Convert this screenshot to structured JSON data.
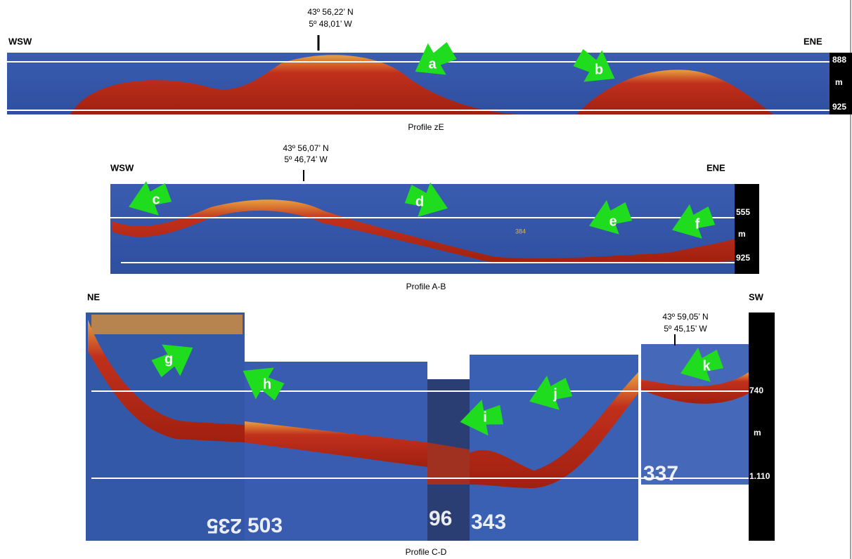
{
  "panels": [
    {
      "left": "WSW",
      "right": "ENE",
      "coord": [
        "43º 56,22’ N",
        "5º 48,01’ W"
      ],
      "depth_top": "888",
      "depth_unit": "m",
      "depth_bottom": "925",
      "markers": [
        "a",
        "b"
      ],
      "caption": "Profile zE"
    },
    {
      "left": "WSW",
      "right": "ENE",
      "coord": [
        "43º 56,07’ N",
        "5º 46,74’ W"
      ],
      "depth_top": "555",
      "depth_unit": "m",
      "depth_bottom": "925",
      "markers": [
        "c",
        "d",
        "e",
        "f"
      ],
      "screen_readings": [
        "384"
      ],
      "caption": "Profile A-B"
    },
    {
      "left": "NE",
      "right": "SW",
      "coord": [
        "43º 59,05’ N",
        "5º 45,15’ W"
      ],
      "depth_top": "740",
      "depth_unit": "m",
      "depth_bottom": "1.110",
      "markers": [
        "g",
        "h",
        "i",
        "j",
        "k"
      ],
      "screen_readings": [
        "235",
        "503",
        "96",
        "343",
        "337"
      ],
      "caption": "Profile C-D"
    }
  ]
}
